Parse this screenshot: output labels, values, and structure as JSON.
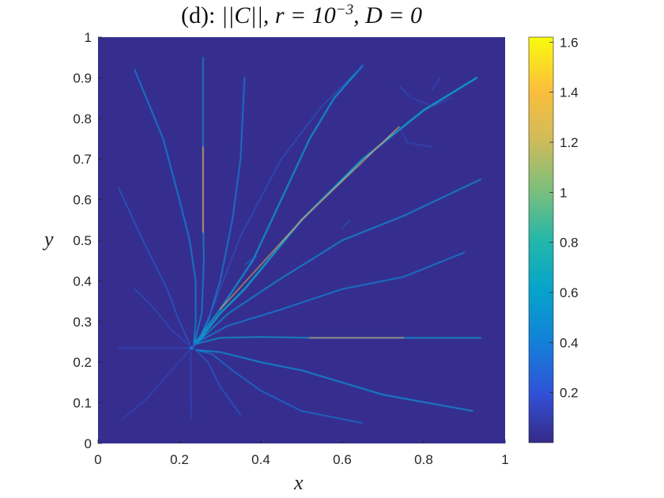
{
  "chart_data": {
    "type": "heatmap",
    "title": "(d): ||C||, r = 10⁻³, D = 0",
    "title_parts": {
      "prefix": "(d): ",
      "formula": "||C||, r = 10",
      "exponent": "−3",
      "suffix": ", D = 0"
    },
    "xlabel": "x",
    "ylabel": "y",
    "xlim": [
      0,
      1
    ],
    "ylim": [
      0,
      1
    ],
    "xticks": [
      0,
      0.2,
      0.4,
      0.6,
      0.8,
      1
    ],
    "xtick_labels": [
      "0",
      "0.2",
      "0.4",
      "0.6",
      "0.8",
      "1"
    ],
    "yticks": [
      0,
      0.1,
      0.2,
      0.3,
      0.4,
      0.5,
      0.6,
      0.7,
      0.8,
      0.9,
      1
    ],
    "ytick_labels": [
      "0",
      "0.1",
      "0.2",
      "0.3",
      "0.4",
      "0.5",
      "0.6",
      "0.7",
      "0.8",
      "0.9",
      "1"
    ],
    "colorbar": {
      "range": [
        0,
        1.62
      ],
      "ticks": [
        0.2,
        0.4,
        0.6,
        0.8,
        1,
        1.2,
        1.4,
        1.6
      ],
      "tick_labels": [
        "0.2",
        "0.4",
        "0.6",
        "0.8",
        "1",
        "1.2",
        "1.4",
        "1.6"
      ],
      "colormap": "parula"
    },
    "background_value": 0.02,
    "source_point": [
      0.23,
      0.235
    ],
    "channels": [
      {
        "points": [
          [
            0.235,
            0.24
          ],
          [
            0.24,
            0.3
          ],
          [
            0.24,
            0.4
          ],
          [
            0.225,
            0.5
          ],
          [
            0.2,
            0.6
          ],
          [
            0.16,
            0.75
          ],
          [
            0.09,
            0.92
          ]
        ],
        "value": 0.45,
        "width": 1.5
      },
      {
        "points": [
          [
            0.235,
            0.24
          ],
          [
            0.255,
            0.32
          ],
          [
            0.26,
            0.45
          ],
          [
            0.258,
            0.55
          ],
          [
            0.258,
            0.75
          ],
          [
            0.258,
            0.95
          ]
        ],
        "value": 0.5,
        "width": 1.4
      },
      {
        "points": [
          [
            0.258,
            0.52
          ],
          [
            0.258,
            0.73
          ]
        ],
        "value": 1.35,
        "width": 1.2
      },
      {
        "points": [
          [
            0.24,
            0.245
          ],
          [
            0.27,
            0.3
          ],
          [
            0.3,
            0.4
          ],
          [
            0.33,
            0.55
          ],
          [
            0.35,
            0.7
          ],
          [
            0.36,
            0.9
          ]
        ],
        "value": 0.45,
        "width": 1.4
      },
      {
        "points": [
          [
            0.24,
            0.25
          ],
          [
            0.3,
            0.33
          ],
          [
            0.38,
            0.45
          ],
          [
            0.45,
            0.6
          ],
          [
            0.52,
            0.75
          ],
          [
            0.58,
            0.85
          ],
          [
            0.65,
            0.93
          ]
        ],
        "value": 0.55,
        "width": 1.8
      },
      {
        "points": [
          [
            0.245,
            0.25
          ],
          [
            0.3,
            0.32
          ],
          [
            0.36,
            0.38
          ],
          [
            0.5,
            0.55
          ],
          [
            0.65,
            0.7
          ],
          [
            0.8,
            0.82
          ],
          [
            0.93,
            0.9
          ]
        ],
        "value": 0.6,
        "width": 2.2
      },
      {
        "points": [
          [
            0.3,
            0.33
          ],
          [
            0.5,
            0.55
          ],
          [
            0.74,
            0.78
          ]
        ],
        "value": 1.3,
        "width": 1.0
      },
      {
        "points": [
          [
            0.245,
            0.25
          ],
          [
            0.32,
            0.32
          ],
          [
            0.44,
            0.4
          ],
          [
            0.6,
            0.5
          ],
          [
            0.75,
            0.56
          ],
          [
            0.94,
            0.65
          ]
        ],
        "value": 0.5,
        "width": 1.5
      },
      {
        "points": [
          [
            0.245,
            0.25
          ],
          [
            0.32,
            0.29
          ],
          [
            0.45,
            0.33
          ],
          [
            0.6,
            0.38
          ],
          [
            0.75,
            0.41
          ],
          [
            0.9,
            0.47
          ]
        ],
        "value": 0.45,
        "width": 1.4
      },
      {
        "points": [
          [
            0.24,
            0.245
          ],
          [
            0.3,
            0.26
          ],
          [
            0.4,
            0.262
          ],
          [
            0.52,
            0.26
          ],
          [
            0.7,
            0.26
          ],
          [
            0.94,
            0.26
          ]
        ],
        "value": 0.55,
        "width": 1.5
      },
      {
        "points": [
          [
            0.52,
            0.26
          ],
          [
            0.75,
            0.26
          ]
        ],
        "value": 1.3,
        "width": 1.0
      },
      {
        "points": [
          [
            0.24,
            0.23
          ],
          [
            0.3,
            0.225
          ],
          [
            0.4,
            0.2
          ],
          [
            0.5,
            0.18
          ],
          [
            0.6,
            0.15
          ],
          [
            0.7,
            0.12
          ],
          [
            0.92,
            0.08
          ]
        ],
        "value": 0.5,
        "width": 1.6
      },
      {
        "points": [
          [
            0.24,
            0.23
          ],
          [
            0.28,
            0.22
          ],
          [
            0.33,
            0.18
          ],
          [
            0.4,
            0.13
          ],
          [
            0.5,
            0.08
          ],
          [
            0.65,
            0.05
          ]
        ],
        "value": 0.4,
        "width": 1.2
      },
      {
        "points": [
          [
            0.24,
            0.23
          ],
          [
            0.27,
            0.2
          ],
          [
            0.3,
            0.14
          ],
          [
            0.35,
            0.07
          ]
        ],
        "value": 0.32,
        "width": 1.0
      },
      {
        "points": [
          [
            0.225,
            0.245
          ],
          [
            0.2,
            0.3
          ],
          [
            0.17,
            0.38
          ],
          [
            0.11,
            0.5
          ],
          [
            0.05,
            0.63
          ]
        ],
        "value": 0.32,
        "width": 1.0
      },
      {
        "points": [
          [
            0.225,
            0.24
          ],
          [
            0.18,
            0.28
          ],
          [
            0.14,
            0.33
          ],
          [
            0.09,
            0.38
          ]
        ],
        "value": 0.25,
        "width": 0.9
      },
      {
        "points": [
          [
            0.225,
            0.235
          ],
          [
            0.15,
            0.235
          ],
          [
            0.05,
            0.235
          ]
        ],
        "value": 0.22,
        "width": 0.8
      },
      {
        "points": [
          [
            0.225,
            0.23
          ],
          [
            0.18,
            0.18
          ],
          [
            0.12,
            0.11
          ],
          [
            0.06,
            0.06
          ]
        ],
        "value": 0.22,
        "width": 0.8
      },
      {
        "points": [
          [
            0.228,
            0.225
          ],
          [
            0.228,
            0.12
          ],
          [
            0.23,
            0.06
          ]
        ],
        "value": 0.22,
        "width": 0.8
      },
      {
        "points": [
          [
            0.24,
            0.24
          ],
          [
            0.28,
            0.33
          ],
          [
            0.35,
            0.51
          ],
          [
            0.45,
            0.7
          ],
          [
            0.55,
            0.83
          ],
          [
            0.65,
            0.93
          ]
        ],
        "value": 0.3,
        "width": 0.8
      },
      {
        "points": [
          [
            0.74,
            0.88
          ],
          [
            0.77,
            0.85
          ],
          [
            0.82,
            0.83
          ],
          [
            0.87,
            0.85
          ]
        ],
        "value": 0.22,
        "width": 0.8
      },
      {
        "points": [
          [
            0.74,
            0.78
          ],
          [
            0.76,
            0.74
          ],
          [
            0.82,
            0.73
          ]
        ],
        "value": 0.22,
        "width": 0.8
      },
      {
        "points": [
          [
            0.82,
            0.87
          ],
          [
            0.84,
            0.9
          ]
        ],
        "value": 0.22,
        "width": 0.8
      },
      {
        "points": [
          [
            0.36,
            0.44
          ],
          [
            0.39,
            0.46
          ]
        ],
        "value": 0.35,
        "width": 0.9
      },
      {
        "points": [
          [
            0.6,
            0.53
          ],
          [
            0.62,
            0.55
          ]
        ],
        "value": 0.3,
        "width": 0.8
      }
    ]
  }
}
